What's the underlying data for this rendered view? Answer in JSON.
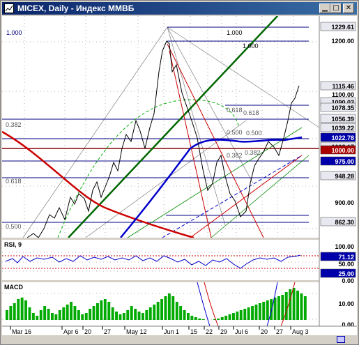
{
  "window": {
    "title": "MICEX, Daily - Индекс ММВБ",
    "min_icon": "minimize-icon",
    "max_icon": "maximize-icon",
    "close_icon": "close-icon"
  },
  "colors": {
    "title_bar": "#0a246a",
    "price_line": "#000000",
    "ma_blue": "#0000cc",
    "ma_red": "#cc0000",
    "trend_green": "#006600",
    "fib_line": "#000080",
    "label_box": "#0000aa",
    "macd_bar": "#00aa00"
  },
  "price_panel": {
    "fib_labels": [
      {
        "value": "1.000"
      },
      {
        "value": "1.000"
      },
      {
        "value": "1.000"
      },
      {
        "value": "0.618"
      },
      {
        "value": "0.618"
      },
      {
        "value": "0.382"
      },
      {
        "value": "0.500"
      },
      {
        "value": "0.500"
      },
      {
        "value": "0.382"
      },
      {
        "value": "0.382"
      },
      {
        "value": "0.618"
      },
      {
        "value": "0.500"
      }
    ],
    "axis_labels": [
      {
        "text": "1229.61",
        "boxed": true
      },
      {
        "text": "1200.00",
        "boxed": false
      },
      {
        "text": "1115.46",
        "boxed": true
      },
      {
        "text": "1100.00",
        "boxed": false
      },
      {
        "text": "1090.03",
        "boxed": true
      },
      {
        "text": "1078.35",
        "boxed": true
      },
      {
        "text": "1056.39",
        "boxed": true
      },
      {
        "text": "1039.22",
        "boxed": true
      },
      {
        "text": "1022.78",
        "boxed": true,
        "highlight": "blue"
      },
      {
        "text": "1008.17",
        "boxed": true
      },
      {
        "text": "1000.00",
        "boxed": true,
        "highlight": "red"
      },
      {
        "text": "975.00",
        "boxed": true,
        "highlight": "blue"
      },
      {
        "text": "948.28",
        "boxed": true
      },
      {
        "text": "900.00",
        "boxed": false
      },
      {
        "text": "862.30",
        "boxed": true
      }
    ]
  },
  "rsi_panel": {
    "title": "RSI, 9",
    "axis_labels": [
      {
        "text": "100.00",
        "boxed": false
      },
      {
        "text": "71.12",
        "boxed": true,
        "highlight": "blue"
      },
      {
        "text": "50.00",
        "boxed": false
      },
      {
        "text": "25.00",
        "boxed": true,
        "highlight": "blue"
      },
      {
        "text": "0.00",
        "boxed": false
      }
    ]
  },
  "macd_panel": {
    "title": "MACD",
    "axis_labels": [
      {
        "text": "10.00",
        "boxed": false
      },
      {
        "text": "0.00",
        "boxed": false
      }
    ]
  },
  "x_axis": [
    "Mar 16",
    "Apr 6",
    "20",
    "27",
    "May 12",
    "Jun 1",
    "15",
    "22",
    "29",
    "Jul 6",
    "20",
    "27",
    "Aug 3"
  ],
  "chart_data": {
    "type": "line",
    "title": "MICEX, Daily - Индекс ММВБ",
    "xlabel": "",
    "ylabel": "",
    "ylim": [
      840,
      1240
    ],
    "x": [
      "Mar 16",
      "Apr 6",
      "20",
      "27",
      "May 12",
      "Jun 1",
      "15",
      "22",
      "29",
      "Jul 6",
      "20",
      "27",
      "Aug 3"
    ],
    "series": [
      {
        "values": [
          850,
          880,
          905,
          930,
          1000,
          1210,
          1080,
          960,
          920,
          880,
          1000,
          1060,
          1115
        ]
      }
    ],
    "last_price": 1115.46,
    "rsi_last": 71.12
  }
}
